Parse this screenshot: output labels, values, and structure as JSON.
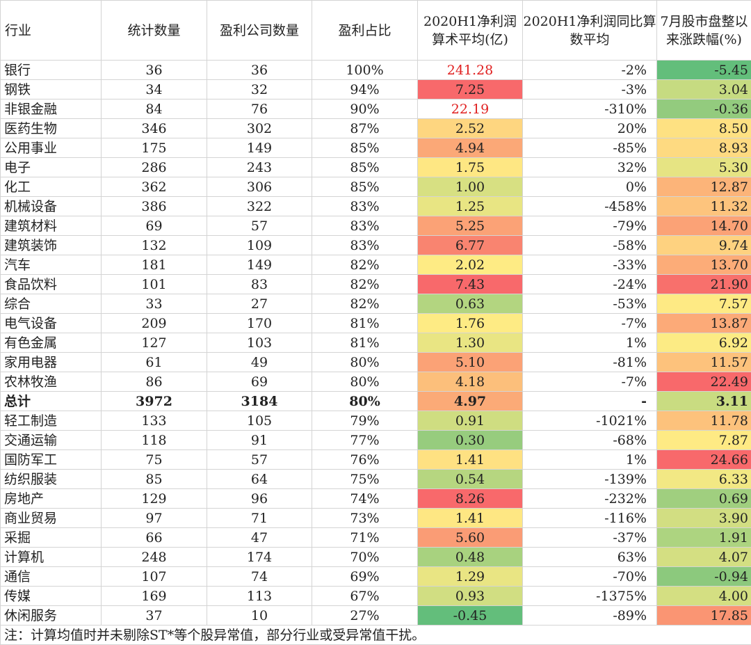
{
  "headers": [
    "行业",
    "统计数量",
    "盈利公司数量",
    "盈利占比",
    "2020H1净利润算术平均(亿)",
    "2020H1净利润同比算数平均",
    "7月股市盘整以来涨跌幅(%)"
  ],
  "rows": [
    {
      "industry": "银行",
      "count": "36",
      "profitable": "36",
      "ratio": "100%",
      "avg": "241.28",
      "yoy": "-2%",
      "change": "-5.45",
      "avg_color": "#ffffff",
      "avg_text_color": "#e02020",
      "change_color": "#63be7b"
    },
    {
      "industry": "钢铁",
      "count": "34",
      "profitable": "32",
      "ratio": "94%",
      "avg": "7.25",
      "yoy": "-3%",
      "change": "3.04",
      "avg_color": "#f8696b",
      "change_color": "#c6db81"
    },
    {
      "industry": "非银金融",
      "count": "84",
      "profitable": "76",
      "ratio": "90%",
      "avg": "22.19",
      "yoy": "-310%",
      "change": "-0.36",
      "avg_color": "#ffffff",
      "avg_text_color": "#e02020",
      "change_color": "#93cb7e"
    },
    {
      "industry": "医药生物",
      "count": "346",
      "profitable": "302",
      "ratio": "87%",
      "avg": "2.52",
      "yoy": "20%",
      "change": "8.50",
      "avg_color": "#fed680",
      "change_color": "#fee182"
    },
    {
      "industry": "公用事业",
      "count": "175",
      "profitable": "149",
      "ratio": "85%",
      "avg": "4.94",
      "yoy": "-85%",
      "change": "8.93",
      "avg_color": "#fba877",
      "change_color": "#feda81"
    },
    {
      "industry": "电子",
      "count": "286",
      "profitable": "243",
      "ratio": "85%",
      "avg": "1.75",
      "yoy": "32%",
      "change": "5.30",
      "avg_color": "#fee783",
      "change_color": "#e6e483"
    },
    {
      "industry": "化工",
      "count": "362",
      "profitable": "306",
      "ratio": "85%",
      "avg": "1.00",
      "yoy": "0%",
      "change": "12.87",
      "avg_color": "#d7e082",
      "change_color": "#fcb479"
    },
    {
      "industry": "机械设备",
      "count": "386",
      "profitable": "322",
      "ratio": "83%",
      "avg": "1.25",
      "yoy": "-458%",
      "change": "11.32",
      "avg_color": "#e8e583",
      "change_color": "#fdc47d"
    },
    {
      "industry": "建筑材料",
      "count": "69",
      "profitable": "57",
      "ratio": "83%",
      "avg": "5.25",
      "yoy": "-79%",
      "change": "14.70",
      "avg_color": "#fba276",
      "change_color": "#fba276"
    },
    {
      "industry": "建筑装饰",
      "count": "132",
      "profitable": "109",
      "ratio": "83%",
      "avg": "6.77",
      "yoy": "-58%",
      "change": "9.74",
      "avg_color": "#f98470",
      "change_color": "#fed280"
    },
    {
      "industry": "汽车",
      "count": "181",
      "profitable": "149",
      "ratio": "82%",
      "avg": "2.02",
      "yoy": "-33%",
      "change": "13.70",
      "avg_color": "#feeb84",
      "change_color": "#fcac78"
    },
    {
      "industry": "食品饮料",
      "count": "101",
      "profitable": "83",
      "ratio": "82%",
      "avg": "7.43",
      "yoy": "-24%",
      "change": "21.90",
      "avg_color": "#f8696b",
      "change_color": "#f8706c"
    },
    {
      "industry": "综合",
      "count": "33",
      "profitable": "27",
      "ratio": "82%",
      "avg": "0.63",
      "yoy": "-53%",
      "change": "7.57",
      "avg_color": "#b3d580",
      "change_color": "#feea84"
    },
    {
      "industry": "电气设备",
      "count": "209",
      "profitable": "170",
      "ratio": "81%",
      "avg": "1.76",
      "yoy": "-7%",
      "change": "13.87",
      "avg_color": "#feeb84",
      "change_color": "#fcaa78"
    },
    {
      "industry": "有色金属",
      "count": "127",
      "profitable": "103",
      "ratio": "81%",
      "avg": "1.30",
      "yoy": "1%",
      "change": "6.92",
      "avg_color": "#e9e583",
      "change_color": "#fceb84"
    },
    {
      "industry": "家用电器",
      "count": "61",
      "profitable": "49",
      "ratio": "80%",
      "avg": "5.10",
      "yoy": "-81%",
      "change": "11.57",
      "avg_color": "#fba276",
      "change_color": "#fdc27c"
    },
    {
      "industry": "农林牧渔",
      "count": "86",
      "profitable": "69",
      "ratio": "80%",
      "avg": "4.18",
      "yoy": "-7%",
      "change": "22.49",
      "avg_color": "#fcbf7b",
      "change_color": "#f8696b"
    },
    {
      "industry": "总计",
      "count": "3972",
      "profitable": "3184",
      "ratio": "80%",
      "avg": "4.97",
      "yoy": "-",
      "change": "3.11",
      "avg_color": "#fbaa77",
      "change_color": "#c9dc81",
      "total": true
    },
    {
      "industry": "轻工制造",
      "count": "133",
      "profitable": "105",
      "ratio": "79%",
      "avg": "0.91",
      "yoy": "-1021%",
      "change": "11.78",
      "avg_color": "#cfdd81",
      "change_color": "#fdc27c"
    },
    {
      "industry": "交通运输",
      "count": "118",
      "profitable": "91",
      "ratio": "77%",
      "avg": "0.30",
      "yoy": "-68%",
      "change": "7.87",
      "avg_color": "#97cc7e",
      "change_color": "#feea84"
    },
    {
      "industry": "国防军工",
      "count": "75",
      "profitable": "57",
      "ratio": "76%",
      "avg": "1.41",
      "yoy": "1%",
      "change": "24.66",
      "avg_color": "#fee182",
      "change_color": "#f8696b"
    },
    {
      "industry": "纺织服装",
      "count": "85",
      "profitable": "64",
      "ratio": "75%",
      "avg": "0.54",
      "yoy": "-139%",
      "change": "6.33",
      "avg_color": "#b6d680",
      "change_color": "#f2e884"
    },
    {
      "industry": "房地产",
      "count": "129",
      "profitable": "96",
      "ratio": "74%",
      "avg": "8.26",
      "yoy": "-232%",
      "change": "0.69",
      "avg_color": "#f8696b",
      "change_color": "#a0cf7f"
    },
    {
      "industry": "商业贸易",
      "count": "97",
      "profitable": "71",
      "ratio": "73%",
      "avg": "1.41",
      "yoy": "-116%",
      "change": "3.90",
      "avg_color": "#fee783",
      "change_color": "#d2de82"
    },
    {
      "industry": "采掘",
      "count": "66",
      "profitable": "47",
      "ratio": "71%",
      "avg": "5.60",
      "yoy": "-37%",
      "change": "1.91",
      "avg_color": "#fa9c75",
      "change_color": "#add480"
    },
    {
      "industry": "计算机",
      "count": "248",
      "profitable": "174",
      "ratio": "70%",
      "avg": "0.48",
      "yoy": "63%",
      "change": "4.07",
      "avg_color": "#a8d27f",
      "change_color": "#d4df82"
    },
    {
      "industry": "通信",
      "count": "107",
      "profitable": "74",
      "ratio": "69%",
      "avg": "1.29",
      "yoy": "-70%",
      "change": "-0.94",
      "avg_color": "#e9e583",
      "change_color": "#8cc97d"
    },
    {
      "industry": "传媒",
      "count": "169",
      "profitable": "113",
      "ratio": "67%",
      "avg": "0.93",
      "yoy": "-1375%",
      "change": "4.00",
      "avg_color": "#d1de82",
      "change_color": "#d4df82"
    },
    {
      "industry": "休闲服务",
      "count": "37",
      "profitable": "10",
      "ratio": "27%",
      "avg": "-0.45",
      "yoy": "-89%",
      "change": "17.85",
      "avg_color": "#63be7b",
      "change_color": "#fa9573"
    }
  ],
  "note": "注：计算均值时并未剔除ST*等个股异常值，部分行业或受异常值干扰。"
}
